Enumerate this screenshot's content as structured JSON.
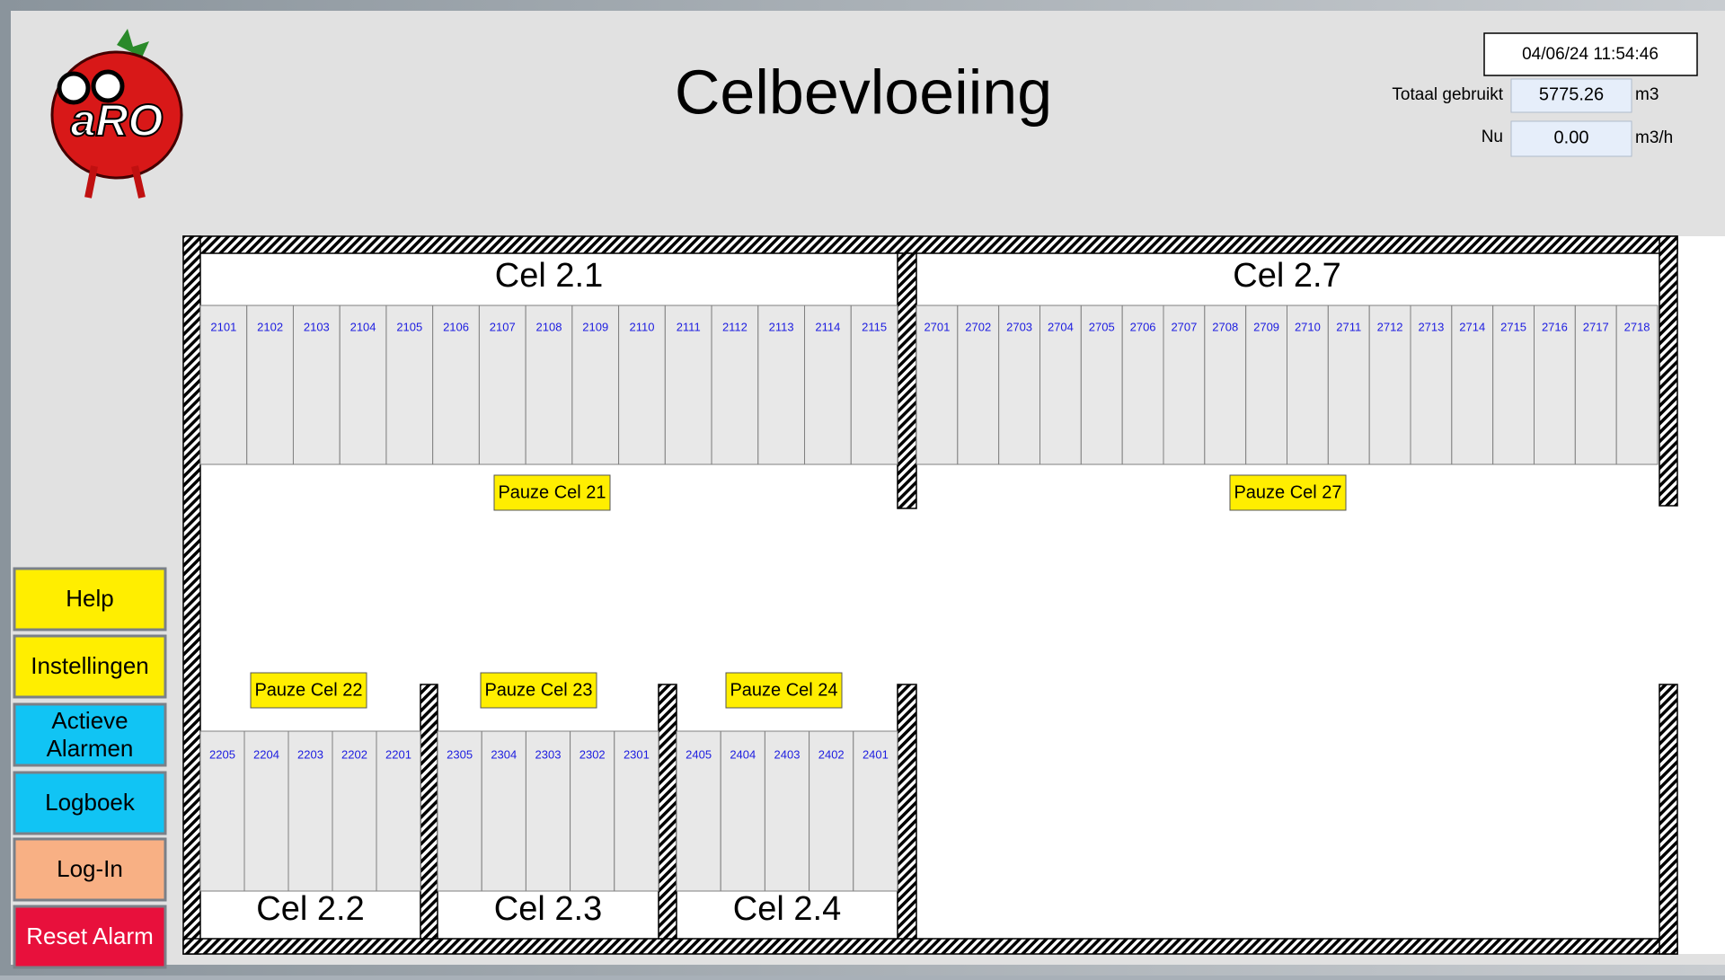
{
  "header": {
    "title": "Celbevloeiing",
    "datetime": "04/06/24 11:54:46",
    "logo_text": "aRO",
    "total": {
      "label": "Totaal gebruikt",
      "value": "5775.26",
      "unit": "m3"
    },
    "now": {
      "label": "Nu",
      "value": "0.00",
      "unit": "m3/h"
    }
  },
  "buttons": [
    "Help",
    "Instellingen",
    "Actieve Alarmen",
    "Logboek",
    "Log-In",
    "Reset Alarm"
  ],
  "cells": [
    {
      "name": "Cel 2.1",
      "pause": "Pauze Cel 21",
      "beds": [
        "2101",
        "2102",
        "2103",
        "2104",
        "2105",
        "2106",
        "2107",
        "2108",
        "2109",
        "2110",
        "2111",
        "2112",
        "2113",
        "2114",
        "2115"
      ]
    },
    {
      "name": "Cel 2.7",
      "pause": "Pauze Cel 27",
      "beds": [
        "2701",
        "2702",
        "2703",
        "2704",
        "2705",
        "2706",
        "2707",
        "2708",
        "2709",
        "2710",
        "2711",
        "2712",
        "2713",
        "2714",
        "2715",
        "2716",
        "2717",
        "2718"
      ]
    },
    {
      "name": "Cel 2.2",
      "pause": "Pauze Cel 22",
      "beds": [
        "2205",
        "2204",
        "2203",
        "2202",
        "2201"
      ]
    },
    {
      "name": "Cel 2.3",
      "pause": "Pauze Cel 23",
      "beds": [
        "2305",
        "2304",
        "2303",
        "2302",
        "2301"
      ]
    },
    {
      "name": "Cel 2.4",
      "pause": "Pauze Cel 24",
      "beds": [
        "2405",
        "2404",
        "2403",
        "2402",
        "2401"
      ]
    }
  ]
}
